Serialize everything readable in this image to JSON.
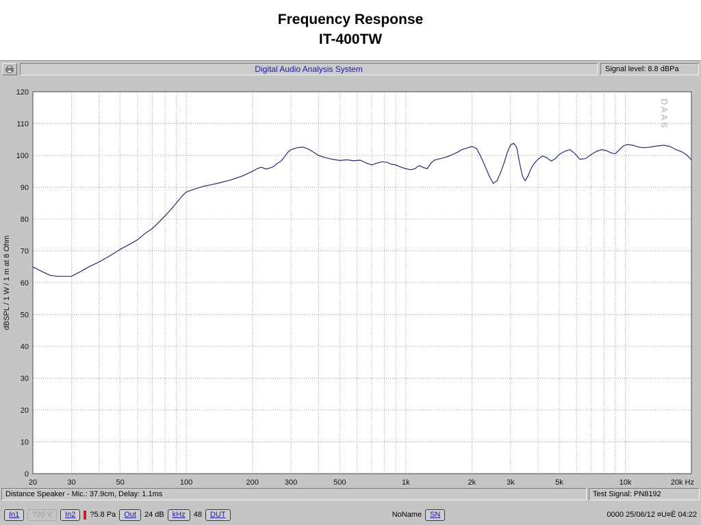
{
  "header": {
    "line1": "Frequency Response",
    "line2": "IT-400TW"
  },
  "window": {
    "titlebar": {
      "app_title": "Digital Audio Analysis System",
      "signal_level": "Signal level:  8.8 dBPa"
    },
    "statusbar": {
      "left": "Distance Speaker - Mic.: 37.9cm, Delay: 1.1ms",
      "right": "Test Signal: PN8192"
    },
    "toolbar": {
      "in1": "In1",
      "range": "?20 V",
      "in2": "In2",
      "pressure": "?5.8 Pa",
      "out": "Out",
      "gain": "24 dB",
      "khz": "kHz",
      "rate": "48",
      "dut": "DUT",
      "name": "NoName",
      "sn": "SN",
      "datetime": "0000 25/06/12 ¤U¤È 04:22"
    }
  },
  "chart_data": {
    "type": "line",
    "title": "Frequency Response",
    "subtitle": "IT-400TW",
    "xlabel": "Hz",
    "ylabel": "dBSPL / 1 W / 1 m at 8 Ohm",
    "x_scale": "log",
    "xlim": [
      20,
      20000
    ],
    "ylim": [
      0,
      120
    ],
    "grid": "dotted",
    "legend": "none",
    "watermark": "DAAS",
    "line_color": "#1f2d6f",
    "y_ticks": [
      0,
      10,
      20,
      30,
      40,
      50,
      60,
      70,
      80,
      90,
      100,
      110,
      120
    ],
    "x_tick_labels": [
      {
        "v": 20,
        "label": "20"
      },
      {
        "v": 30,
        "label": "30"
      },
      {
        "v": 50,
        "label": "50"
      },
      {
        "v": 100,
        "label": "100"
      },
      {
        "v": 200,
        "label": "200"
      },
      {
        "v": 300,
        "label": "300"
      },
      {
        "v": 500,
        "label": "500"
      },
      {
        "v": 1000,
        "label": "1k"
      },
      {
        "v": 2000,
        "label": "2k"
      },
      {
        "v": 3000,
        "label": "3k"
      },
      {
        "v": 5000,
        "label": "5k"
      },
      {
        "v": 10000,
        "label": "10k"
      },
      {
        "v": 20000,
        "label": "20k Hz"
      }
    ],
    "series": [
      {
        "name": "SPL",
        "points": [
          [
            20,
            65
          ],
          [
            22,
            63.5
          ],
          [
            24,
            62.3
          ],
          [
            26,
            62
          ],
          [
            28,
            62
          ],
          [
            30,
            62
          ],
          [
            33,
            63.5
          ],
          [
            36,
            65
          ],
          [
            40,
            66.5
          ],
          [
            45,
            68.5
          ],
          [
            50,
            70.5
          ],
          [
            55,
            72
          ],
          [
            60,
            73.5
          ],
          [
            65,
            75.5
          ],
          [
            70,
            77
          ],
          [
            75,
            79
          ],
          [
            80,
            81
          ],
          [
            85,
            83
          ],
          [
            90,
            85
          ],
          [
            95,
            87
          ],
          [
            100,
            88.5
          ],
          [
            110,
            89.5
          ],
          [
            120,
            90.3
          ],
          [
            130,
            90.8
          ],
          [
            140,
            91.3
          ],
          [
            160,
            92.3
          ],
          [
            180,
            93.5
          ],
          [
            200,
            95
          ],
          [
            210,
            95.8
          ],
          [
            220,
            96.3
          ],
          [
            230,
            95.7
          ],
          [
            240,
            96
          ],
          [
            250,
            96.5
          ],
          [
            260,
            97.5
          ],
          [
            270,
            98.2
          ],
          [
            280,
            99.5
          ],
          [
            290,
            101
          ],
          [
            300,
            101.8
          ],
          [
            320,
            102.4
          ],
          [
            340,
            102.6
          ],
          [
            360,
            102
          ],
          [
            380,
            101
          ],
          [
            400,
            100
          ],
          [
            430,
            99.3
          ],
          [
            460,
            98.8
          ],
          [
            500,
            98.4
          ],
          [
            540,
            98.6
          ],
          [
            580,
            98.3
          ],
          [
            620,
            98.5
          ],
          [
            660,
            97.6
          ],
          [
            700,
            97
          ],
          [
            740,
            97.6
          ],
          [
            780,
            98
          ],
          [
            820,
            97.8
          ],
          [
            860,
            97.2
          ],
          [
            900,
            97
          ],
          [
            950,
            96.3
          ],
          [
            1000,
            95.8
          ],
          [
            1050,
            95.5
          ],
          [
            1100,
            95.8
          ],
          [
            1150,
            96.8
          ],
          [
            1200,
            96.2
          ],
          [
            1250,
            95.8
          ],
          [
            1300,
            97.5
          ],
          [
            1350,
            98.5
          ],
          [
            1400,
            98.8
          ],
          [
            1500,
            99.3
          ],
          [
            1600,
            100
          ],
          [
            1700,
            100.8
          ],
          [
            1800,
            101.8
          ],
          [
            1900,
            102.3
          ],
          [
            2000,
            102.8
          ],
          [
            2100,
            102.2
          ],
          [
            2200,
            99.5
          ],
          [
            2300,
            96.5
          ],
          [
            2400,
            93.5
          ],
          [
            2500,
            91.2
          ],
          [
            2600,
            92
          ],
          [
            2700,
            94.5
          ],
          [
            2800,
            97.5
          ],
          [
            2900,
            101
          ],
          [
            3000,
            103.3
          ],
          [
            3100,
            103.8
          ],
          [
            3200,
            102.5
          ],
          [
            3300,
            97.5
          ],
          [
            3400,
            93.5
          ],
          [
            3500,
            92
          ],
          [
            3600,
            93.5
          ],
          [
            3700,
            95.5
          ],
          [
            3800,
            97
          ],
          [
            4000,
            98.8
          ],
          [
            4200,
            99.8
          ],
          [
            4400,
            99.2
          ],
          [
            4600,
            98.2
          ],
          [
            4800,
            99
          ],
          [
            5000,
            100.3
          ],
          [
            5300,
            101.3
          ],
          [
            5600,
            101.8
          ],
          [
            5900,
            100.5
          ],
          [
            6200,
            98.8
          ],
          [
            6600,
            99
          ],
          [
            7000,
            100.3
          ],
          [
            7400,
            101.3
          ],
          [
            7800,
            101.8
          ],
          [
            8200,
            101.5
          ],
          [
            8600,
            100.8
          ],
          [
            9000,
            100.5
          ],
          [
            9400,
            101.8
          ],
          [
            9800,
            103
          ],
          [
            10200,
            103.4
          ],
          [
            10800,
            103.2
          ],
          [
            11500,
            102.6
          ],
          [
            12200,
            102.4
          ],
          [
            13000,
            102.6
          ],
          [
            14000,
            103
          ],
          [
            15000,
            103.2
          ],
          [
            16000,
            102.8
          ],
          [
            17000,
            101.8
          ],
          [
            18000,
            101.2
          ],
          [
            19000,
            100.2
          ],
          [
            20000,
            98.6
          ]
        ]
      }
    ]
  }
}
